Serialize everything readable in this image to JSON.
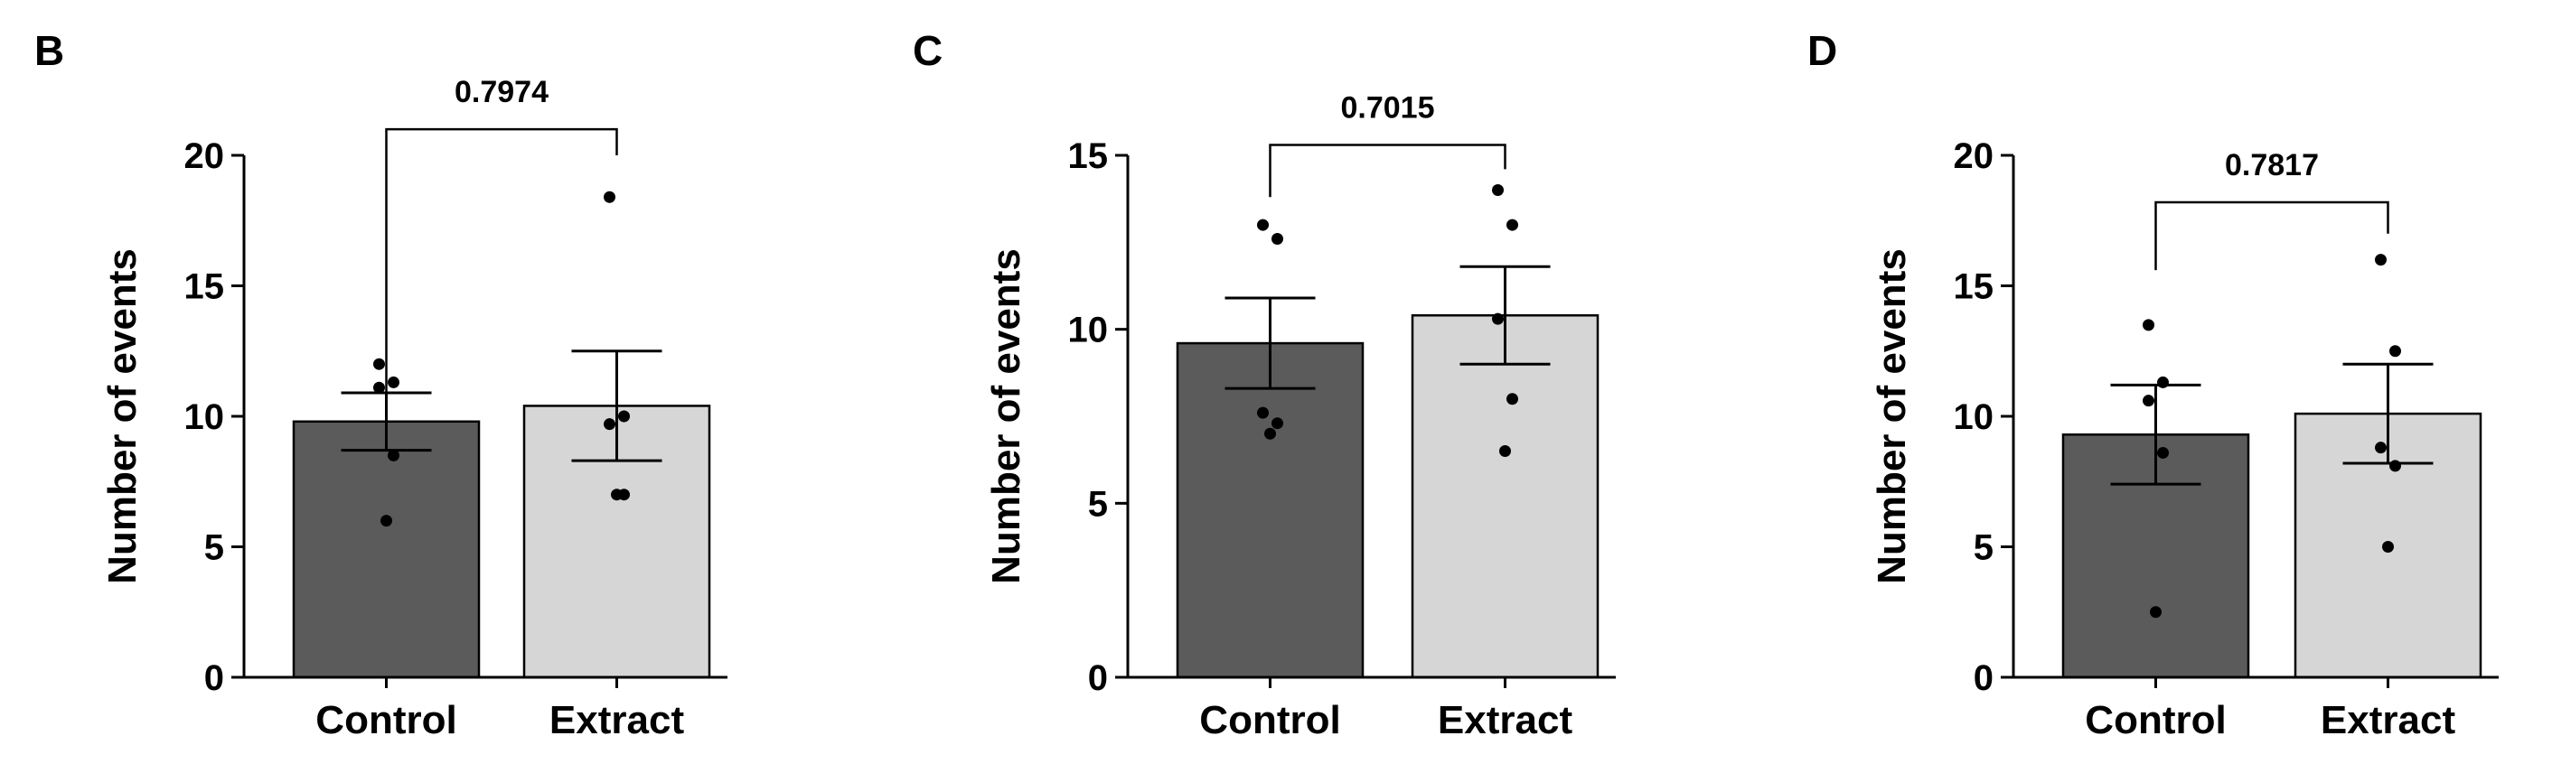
{
  "colors": {
    "control": "#5b5b5b",
    "extract": "#d6d6d6",
    "stroke": "#000000"
  },
  "chart_data": [
    {
      "type": "bar",
      "panel_label": "B",
      "categories": [
        "Control",
        "Extract"
      ],
      "values": [
        9.8,
        10.4
      ],
      "error_sem": [
        1.1,
        2.1
      ],
      "points": [
        [
          12.0,
          11.3,
          11.1,
          8.5,
          6.0
        ],
        [
          18.4,
          10.0,
          9.7,
          7.0,
          7.0
        ]
      ],
      "ylabel": "Number of events",
      "ylim": [
        0,
        20
      ],
      "yticks": [
        0,
        5,
        10,
        15,
        20
      ],
      "comparison": {
        "p_value": "0.7974",
        "bracket_top": 21.0,
        "left_drop": 10.9,
        "right_drop": 20.0
      }
    },
    {
      "type": "bar",
      "panel_label": "C",
      "categories": [
        "Control",
        "Extract"
      ],
      "values": [
        9.6,
        10.4
      ],
      "error_sem": [
        1.3,
        1.4
      ],
      "points": [
        [
          13.0,
          12.6,
          7.6,
          7.3,
          7.0
        ],
        [
          14.0,
          13.0,
          10.3,
          8.0,
          6.5
        ]
      ],
      "ylabel": "Number of events",
      "ylim": [
        0,
        15
      ],
      "yticks": [
        0,
        5,
        10,
        15
      ],
      "comparison": {
        "p_value": "0.7015",
        "bracket_top": 15.3,
        "left_drop": 13.8,
        "right_drop": 14.6
      }
    },
    {
      "type": "bar",
      "panel_label": "D",
      "categories": [
        "Control",
        "Extract"
      ],
      "values": [
        9.3,
        10.1
      ],
      "error_sem": [
        1.9,
        1.9
      ],
      "points": [
        [
          13.5,
          11.3,
          10.6,
          8.6,
          2.5
        ],
        [
          16.0,
          12.5,
          8.8,
          8.1,
          5.0
        ]
      ],
      "ylabel": "Number of events",
      "ylim": [
        0,
        20
      ],
      "yticks": [
        0,
        5,
        10,
        15,
        20
      ],
      "comparison": {
        "p_value": "0.7817",
        "bracket_top": 18.2,
        "left_drop": 15.6,
        "right_drop": 17.0
      }
    }
  ]
}
